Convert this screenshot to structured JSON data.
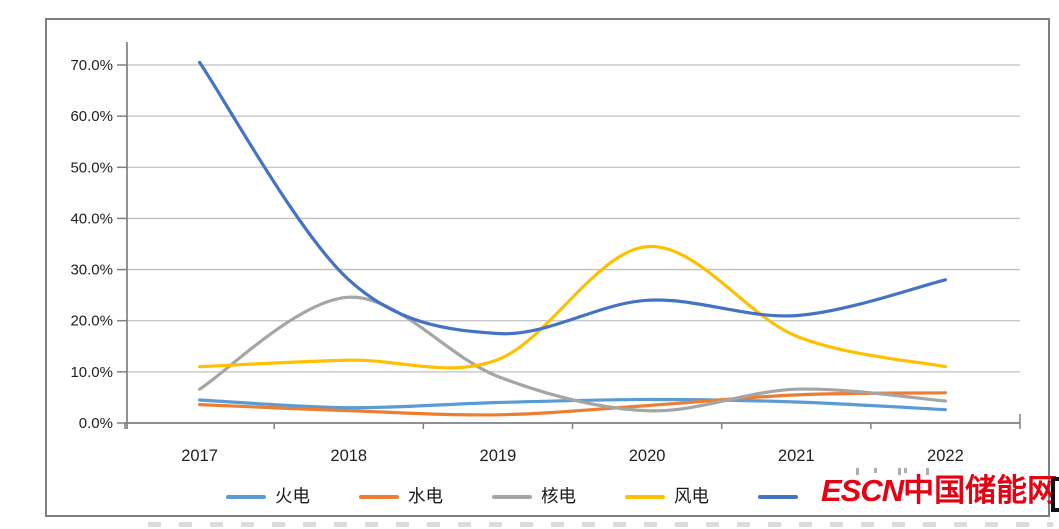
{
  "chart_data": {
    "type": "line",
    "title": "",
    "xlabel": "",
    "ylabel": "",
    "categories": [
      "2017",
      "2018",
      "2019",
      "2020",
      "2021",
      "2022"
    ],
    "y_tick_labels": [
      "0.0%",
      "10.0%",
      "20.0%",
      "30.0%",
      "40.0%",
      "50.0%",
      "60.0%",
      "70.0%"
    ],
    "ylim": [
      0,
      70
    ],
    "y_tick_step": 10,
    "values_unit": "percent",
    "grid": true,
    "line_smoothing": true,
    "legend_position": "bottom",
    "series": [
      {
        "name": "火电",
        "color": "#5B9BD5",
        "values": [
          4.5,
          3.0,
          4.0,
          4.6,
          4.1,
          2.6
        ]
      },
      {
        "name": "水电",
        "color": "#ED7D31",
        "values": [
          3.6,
          2.4,
          1.6,
          3.4,
          5.5,
          5.9
        ]
      },
      {
        "name": "核电",
        "color": "#A5A5A5",
        "values": [
          6.6,
          24.6,
          9.1,
          2.4,
          6.6,
          4.3
        ]
      },
      {
        "name": "风电",
        "color": "#FFC000",
        "values": [
          11.0,
          12.3,
          12.4,
          34.5,
          17.0,
          11.0
        ]
      },
      {
        "name": "",
        "label_obscured_by_watermark": true,
        "color": "#4472C4",
        "values": [
          70.5,
          28.0,
          17.5,
          24.0,
          21.0,
          28.0
        ]
      }
    ]
  },
  "watermark": {
    "text_latin": "ESCN",
    "text_cjk": "中国储能网",
    "color": "#E60012"
  },
  "style": {
    "frame_border": "#7f7f7f",
    "axis_color": "#808080",
    "gridline_color": "#c0c0c0",
    "label_color": "#1f1f1f"
  }
}
